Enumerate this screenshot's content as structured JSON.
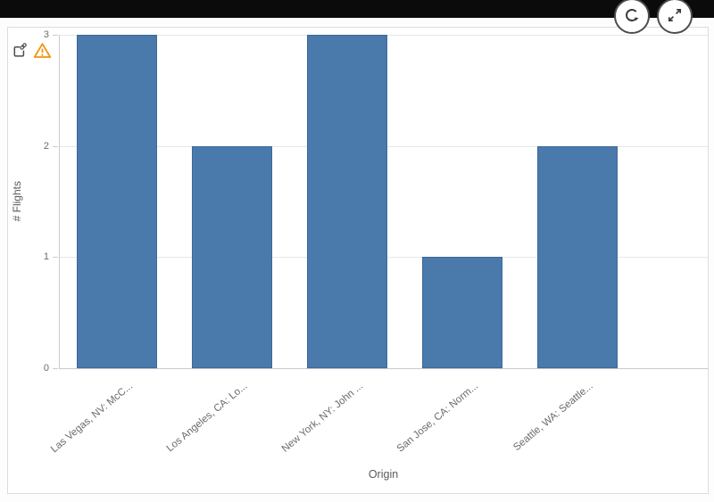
{
  "chart_data": {
    "type": "bar",
    "categories": [
      "Las Vegas, NV: McC...",
      "Los Angeles, CA: Lo...",
      "New York, NY: John ...",
      "San Jose, CA: Norm...",
      "Seattle, WA: Seattle..."
    ],
    "values": [
      3,
      2,
      3,
      1,
      2
    ],
    "title": "",
    "xlabel": "Origin",
    "ylabel": "# Flights",
    "ylim": [
      0,
      3
    ],
    "yticks": [
      0,
      1,
      2,
      3
    ],
    "grid": true,
    "legend": false,
    "bar_color": "#4a79ab"
  },
  "toolbar": {
    "icons": [
      "refresh-icon",
      "expand-icon"
    ]
  },
  "card_indicators": {
    "icons": [
      "share-link-icon",
      "warning-icon"
    ]
  },
  "colors": {
    "bar": "#4a79ab",
    "bar_border": "#3e689c",
    "warning": "#f0950c",
    "topbar": "#0b0b0b",
    "axis_text": "#6b6b6b",
    "gridline": "#e7e7e7"
  }
}
